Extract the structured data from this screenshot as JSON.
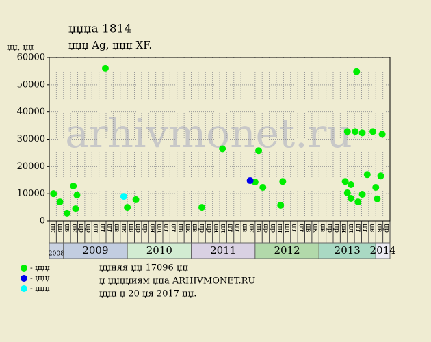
{
  "chart_data": {
    "type": "scatter",
    "title": "џџџа 1814",
    "subtitle": "џџџ Ag, џџџ XF.",
    "y_label": "џџ, џџ",
    "watermark": "arhivmonet.ru",
    "ylim": [
      0,
      60000
    ],
    "yticks": [
      0,
      10000,
      20000,
      30000,
      40000,
      50000,
      60000
    ],
    "xlim": [
      0,
      48
    ],
    "grid": true,
    "categories": [
      "џк",
      "џв",
      "џв",
      "џк",
      "џр",
      "џр",
      "џл",
      "џт",
      "џт",
      "џв",
      "џк",
      "џв",
      "џр",
      "џр",
      "џн",
      "џл",
      "џт",
      "џт",
      "џв",
      "џк",
      "џв",
      "џр",
      "џр",
      "џн",
      "џл",
      "џт",
      "џт",
      "џв",
      "џк",
      "џв",
      "џр",
      "џр",
      "џн",
      "џл",
      "џт",
      "џт",
      "џв",
      "џк",
      "џв",
      "џр",
      "џр",
      "џн",
      "џл",
      "џт",
      "џт",
      "џв",
      "џв",
      "џр"
    ],
    "years": [
      {
        "name": "2008",
        "months": 2,
        "color": "#c9d2e2"
      },
      {
        "name": "2009",
        "months": 9,
        "color": "#c2cde0"
      },
      {
        "name": "2010",
        "months": 9,
        "color": "#d2ecd2"
      },
      {
        "name": "2011",
        "months": 9,
        "color": "#d9d1e3"
      },
      {
        "name": "2012",
        "months": 9,
        "color": "#b2d9aa"
      },
      {
        "name": "2013",
        "months": 8,
        "color": "#a9d9c3"
      },
      {
        "name": "2014",
        "months": 2,
        "color": "#e9e9f1"
      }
    ],
    "series": [
      {
        "name": "- џџџ",
        "color": "#00ee00",
        "x": [
          0.6,
          1.5,
          2.5,
          3.4,
          3.7,
          3.9,
          7.9,
          11.0,
          12.2,
          21.5,
          24.4,
          29.0,
          29.5,
          30.1,
          32.6,
          32.9,
          41.7,
          42.0,
          42.5,
          42.5,
          43.3,
          42.0,
          43.1,
          43.5,
          44.1,
          44.1,
          44.8,
          45.6,
          46.0,
          46.2,
          46.7,
          46.9
        ],
        "values": [
          10000,
          7000,
          2800,
          12800,
          4500,
          9500,
          56000,
          5000,
          7800,
          5000,
          26500,
          14300,
          25800,
          12300,
          5800,
          14500,
          14500,
          10300,
          13300,
          8300,
          54800,
          32800,
          32800,
          7000,
          32300,
          9800,
          17000,
          32800,
          12300,
          8100,
          16500,
          31800
        ]
      },
      {
        "name": "- џџџ",
        "color": "#0000ee",
        "x": [
          28.3
        ],
        "values": [
          14800
        ]
      },
      {
        "name": "- џџџ",
        "color": "#00ffff",
        "x": [
          10.5
        ],
        "values": [
          9000
        ]
      }
    ],
    "notes": [
      "џџняя џџ 17096 џџ",
      "џ џџџџиям џџа ARHIVMONET.RU",
      "џџџ џ 20 џя 2017 џџ."
    ]
  }
}
